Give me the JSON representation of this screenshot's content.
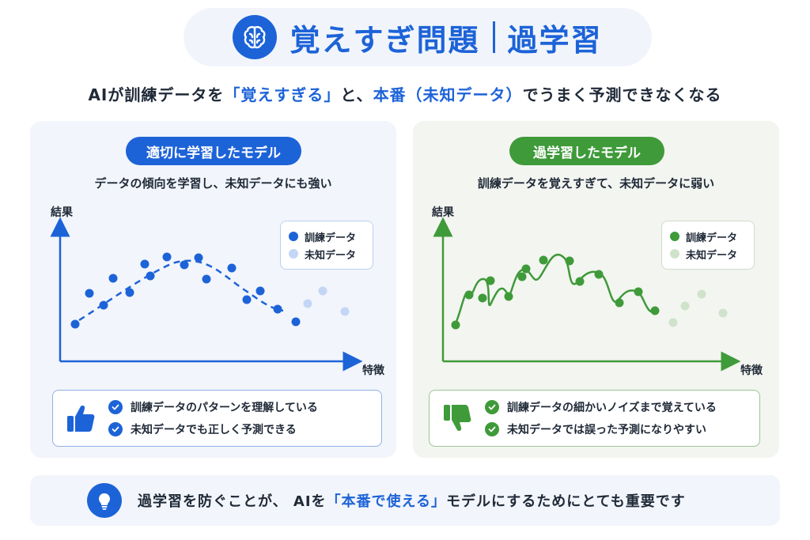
{
  "header": {
    "title_main": "覚えすぎ問題",
    "title_sub": "過学習",
    "icon": "brain-icon"
  },
  "subtitle": {
    "part1": "AIが訓練データを",
    "highlight1": "「覚えすぎる」",
    "part2": "と、",
    "highlight2": "本番（未知データ）",
    "part3": "でうまく予測できなくなる"
  },
  "left_panel": {
    "chip": "適切に学習したモデル",
    "description": "データの傾向を学習し、未知データにも強い",
    "y_axis_label": "結果",
    "x_axis_label": "特徴",
    "legend": [
      "訓練データ",
      "未知データ"
    ],
    "features": [
      "訓練データのパターンを理解している",
      "未知データでも正しく予測できる"
    ],
    "icon": "thumbs-up-icon",
    "color_primary": "#1d63d8",
    "color_light": "#c3d6f5"
  },
  "right_panel": {
    "chip": "過学習したモデル",
    "description": "訓練データを覚えすぎて、未知データに弱い",
    "y_axis_label": "結果",
    "x_axis_label": "特徴",
    "legend": [
      "訓練データ",
      "未知データ"
    ],
    "features": [
      "訓練データの細かいノイズまで覚えている",
      "未知データでは誤った予測になりやすい"
    ],
    "icon": "thumbs-down-icon",
    "color_primary": "#3f9a3a",
    "color_light": "#cfe3cb"
  },
  "footer": {
    "icon": "lightbulb-icon",
    "part1": "過学習を防ぐことが、 AIを",
    "highlight": "「本番で使える」",
    "part2": "モデルにするためにとても重要です"
  }
}
